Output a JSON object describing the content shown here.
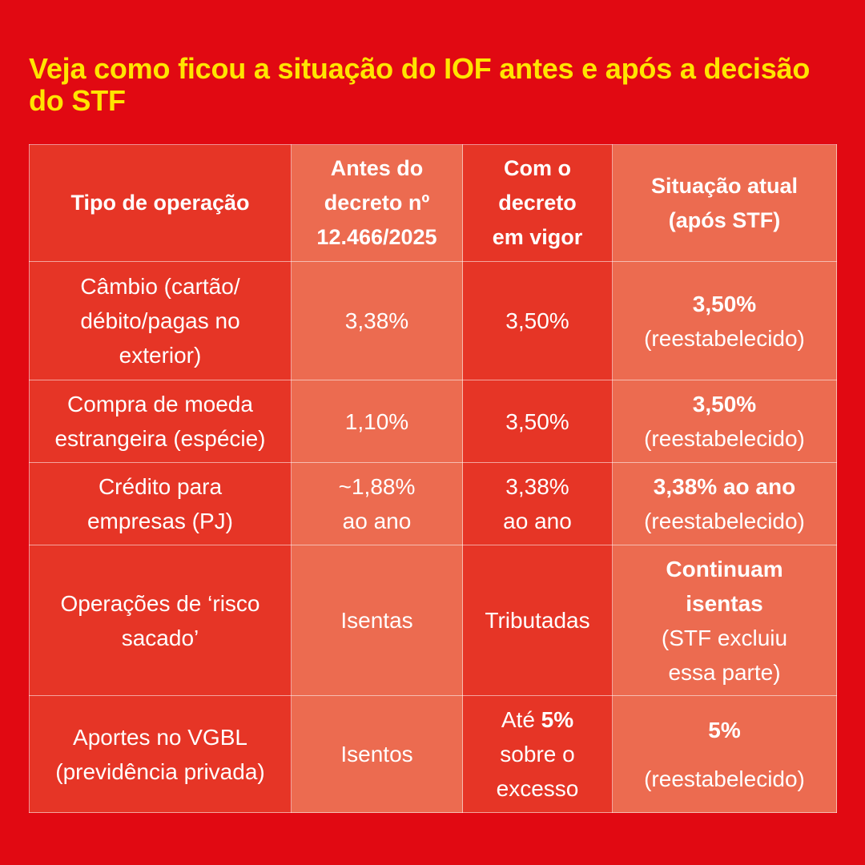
{
  "title": "Veja como ficou a situação do IOF antes e após a decisão do STF",
  "headers": {
    "col1": "Tipo de operação",
    "col2": [
      "Antes do",
      "decreto nº",
      "12.466/2025"
    ],
    "col3": [
      "Com o",
      "decreto",
      "em vigor"
    ],
    "col4": [
      "Situação atual",
      "(após STF)"
    ]
  },
  "rows": [
    {
      "tipo": [
        "Câmbio (cartão/",
        "débito/pagas no",
        "exterior)"
      ],
      "antes": "3,38%",
      "com": "3,50%",
      "atual": "3,50%",
      "atual_note": "(reestabelecido)"
    },
    {
      "tipo": [
        "Compra de moeda",
        "estrangeira (espécie)"
      ],
      "antes": "1,10%",
      "com": "3,50%",
      "atual": "3,50%",
      "atual_note": "(reestabelecido)"
    },
    {
      "tipo": [
        "Crédito para",
        "empresas (PJ)"
      ],
      "antes": [
        "~1,88%",
        "ao ano"
      ],
      "com": [
        "3,38%",
        "ao ano"
      ],
      "atual": "3,38% ao ano",
      "atual_note": "(reestabelecido)"
    },
    {
      "tipo": [
        "Operações de ‘risco",
        "sacado’"
      ],
      "antes": "Isentas",
      "com": "Tributadas",
      "atual": [
        "Continuam",
        "isentas"
      ],
      "atual_note": [
        "(STF excluiu",
        "essa parte)"
      ]
    },
    {
      "tipo": [
        "Aportes no VGBL",
        "(previdência privada)"
      ],
      "antes": "Isentos",
      "com_prefix": "Até",
      "com_bold": "5%",
      "com_rest": [
        "sobre o",
        "excesso"
      ],
      "atual": "5%",
      "atual_note": "(reestabelecido)"
    }
  ]
}
